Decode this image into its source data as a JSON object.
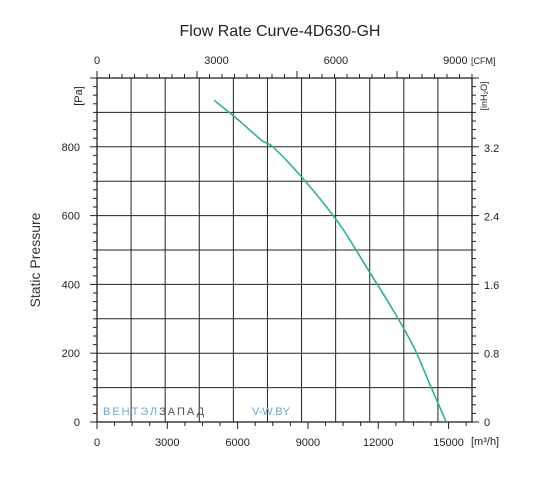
{
  "chart_data": {
    "type": "line",
    "title": "Flow Rate Curve-4D630-GH",
    "ylabel": "Static  Pressure",
    "x_unit": "[m³/h]",
    "y_unit": "[Pa]",
    "top_unit": "[CFM]",
    "right_unit": "[inH₂O]",
    "xlim": [
      0,
      16000
    ],
    "ylim": [
      0,
      1000
    ],
    "x_ticks": [
      "0",
      "3000",
      "6000",
      "9000",
      "12000",
      "15000"
    ],
    "y_ticks": [
      "0",
      "200",
      "400",
      "600",
      "800"
    ],
    "top_ticks": [
      "0",
      "3000",
      "6000",
      "9000"
    ],
    "right_ticks": [
      "0",
      "0.8",
      "1.6",
      "2.4",
      "3.2"
    ],
    "grid": true,
    "series": [
      {
        "color": "#2fb37f",
        "x": [
          5000,
          6000,
          7000,
          7500,
          8500,
          9500,
          10500,
          11500,
          12500,
          13500,
          14200,
          14900
        ],
        "y": [
          935,
          880,
          820,
          800,
          730,
          650,
          560,
          450,
          340,
          220,
          110,
          0
        ]
      }
    ]
  },
  "watermark": {
    "part1": "ВЕНТЭЛ",
    "part2": "ЗАПАД",
    "site": "V-W.BY",
    "colors": {
      "part1": "#6aa6d8",
      "part2": "#555555",
      "site": "#6aa6d8"
    }
  }
}
